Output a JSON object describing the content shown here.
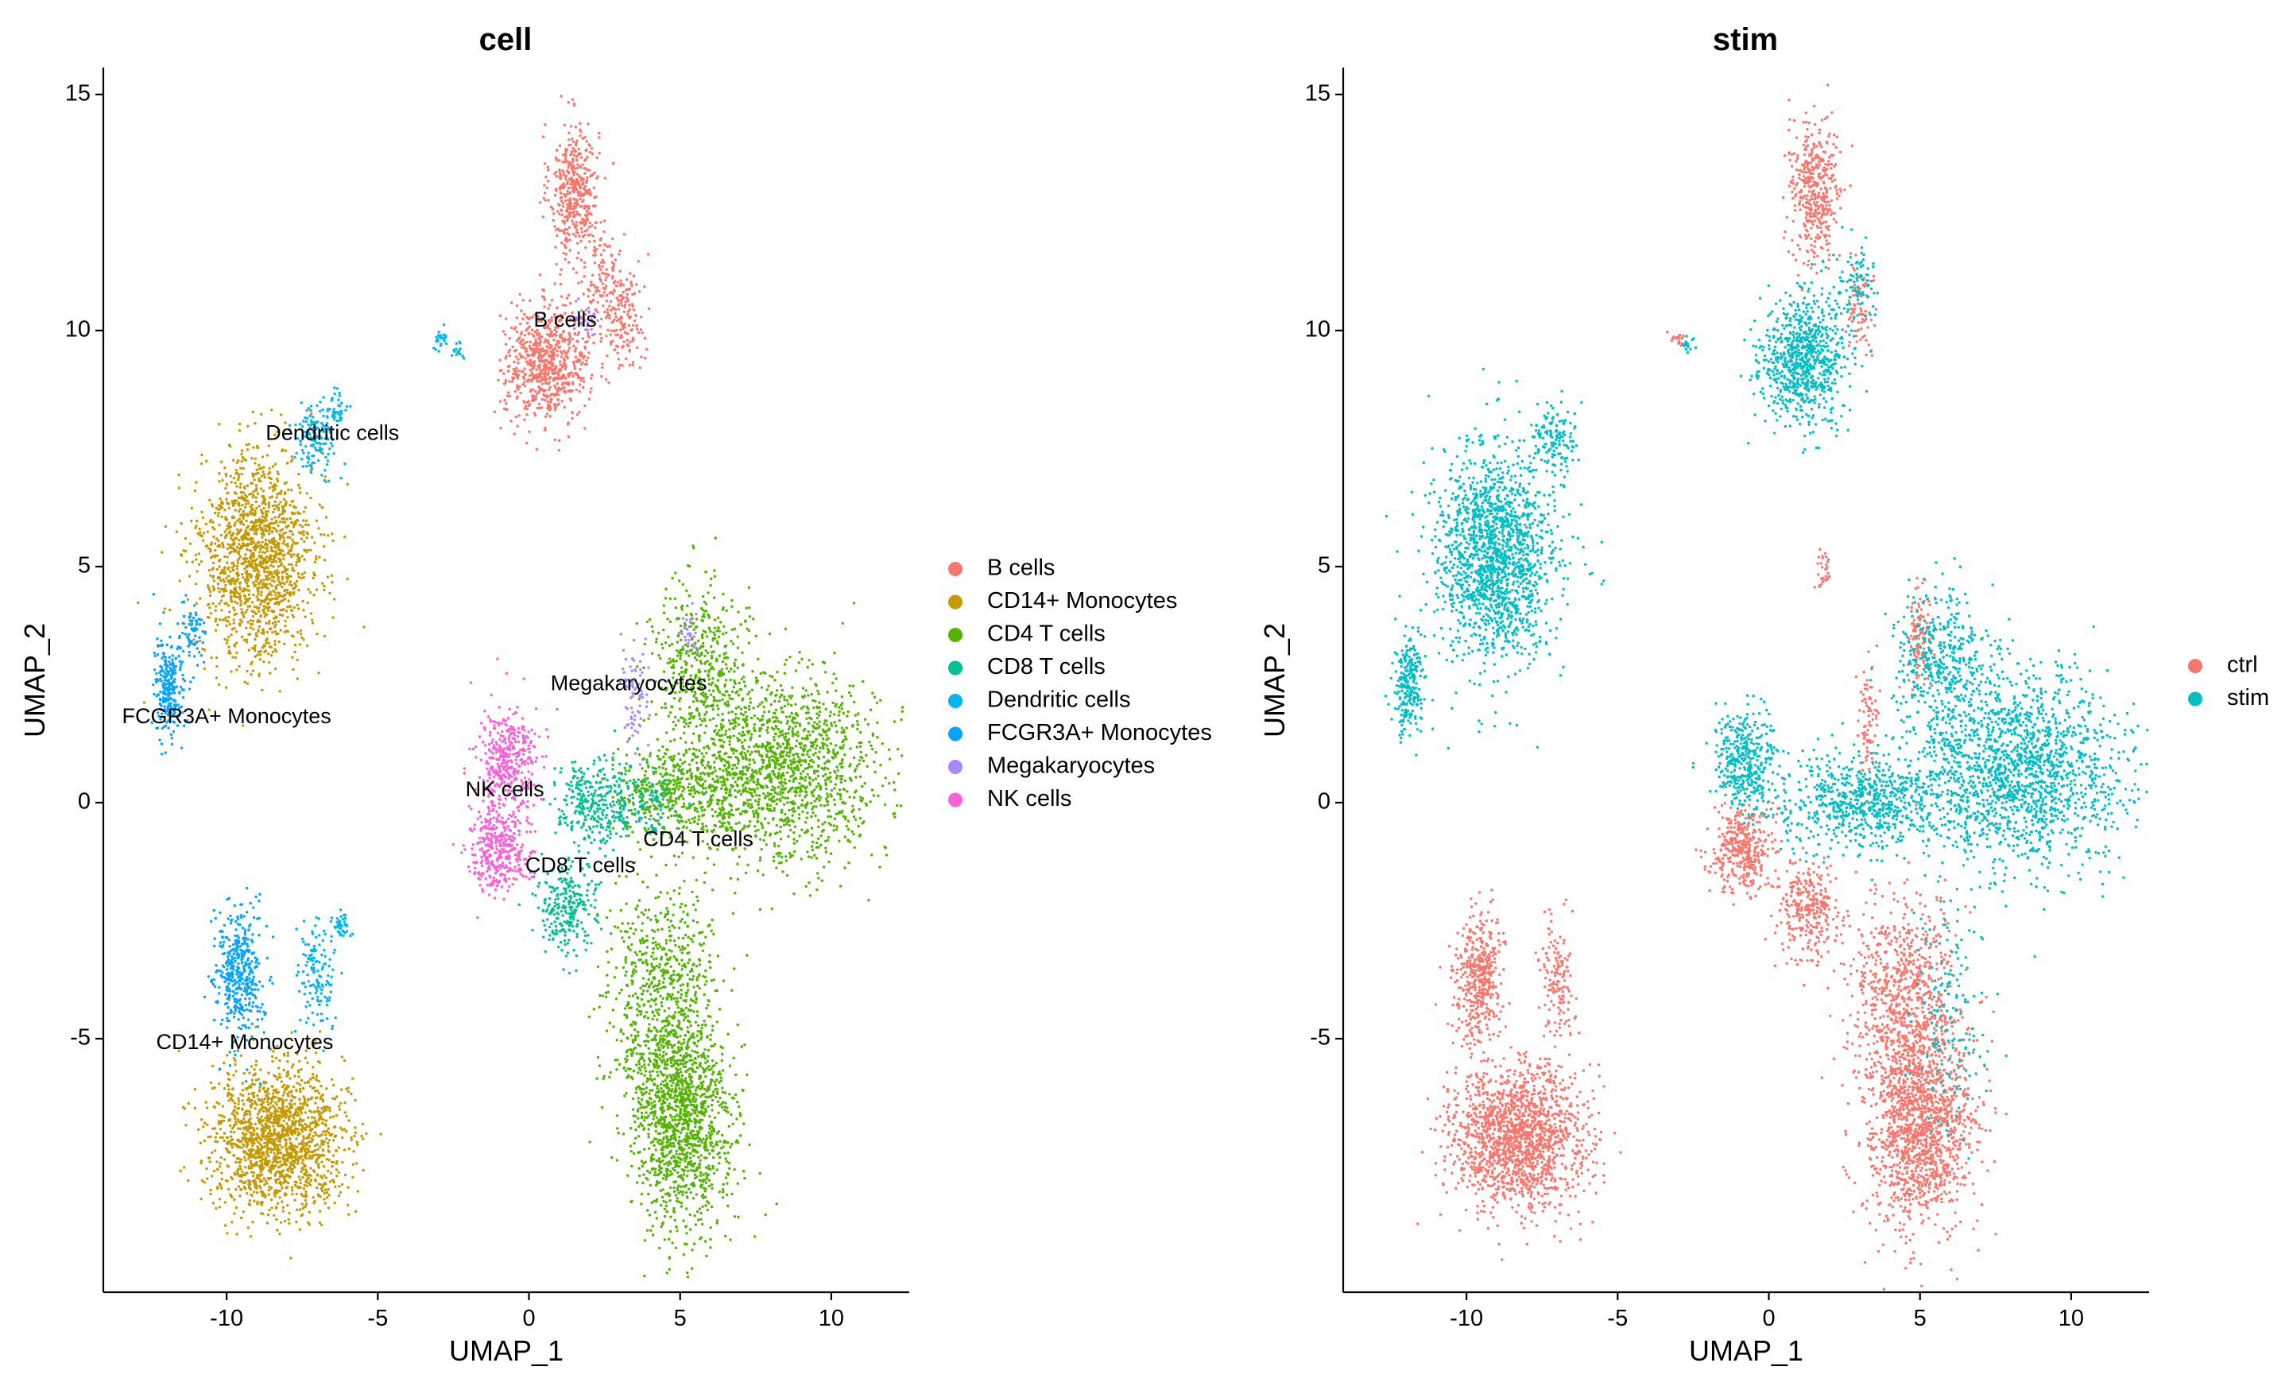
{
  "chart_data": [
    {
      "type": "scatter",
      "title": "cell",
      "xlabel": "UMAP_1",
      "ylabel": "UMAP_2",
      "xlim": [
        -13.5,
        12
      ],
      "ylim": [
        -10,
        15.2
      ],
      "xticks": [
        -10,
        -5,
        0,
        5,
        10
      ],
      "yticks": [
        -5,
        0,
        5,
        10,
        15
      ],
      "xtick_labels": [
        "-10",
        "-5",
        "0",
        "5",
        "10"
      ],
      "ytick_labels": [
        "-5",
        "0",
        "5",
        "10",
        "15"
      ],
      "grid": false,
      "legend_position": "right",
      "series": [
        {
          "name": "B cells",
          "color": "#F8766D",
          "clusters": [
            {
              "cx": 1.5,
              "cy": 13.0,
              "sx": 0.4,
              "sy": 0.7,
              "n": 420
            },
            {
              "cx": 2.5,
              "cy": 11.0,
              "sx": 0.5,
              "sy": 0.6,
              "n": 160
            },
            {
              "cx": 3.2,
              "cy": 10.2,
              "sx": 0.3,
              "sy": 0.5,
              "n": 120
            },
            {
              "cx": 0.6,
              "cy": 9.3,
              "sx": 0.7,
              "sy": 0.6,
              "n": 720
            }
          ]
        },
        {
          "name": "CD14+ Monocytes",
          "color": "#C49A00",
          "clusters": [
            {
              "cx": -9.0,
              "cy": 5.2,
              "sx": 0.95,
              "sy": 1.1,
              "n": 1500
            },
            {
              "cx": -8.3,
              "cy": -7.1,
              "sx": 1.1,
              "sy": 0.75,
              "n": 1600
            }
          ]
        },
        {
          "name": "CD4 T cells",
          "color": "#53B400",
          "clusters": [
            {
              "cx": 8.2,
              "cy": 0.7,
              "sx": 1.7,
              "sy": 1.0,
              "n": 1600
            },
            {
              "cx": 5.6,
              "cy": 3.0,
              "sx": 0.8,
              "sy": 0.8,
              "n": 400
            },
            {
              "cx": 4.4,
              "cy": -4.0,
              "sx": 0.9,
              "sy": 1.1,
              "n": 700
            },
            {
              "cx": 5.0,
              "cy": -6.8,
              "sx": 0.85,
              "sy": 1.1,
              "n": 1300
            },
            {
              "cx": 4.6,
              "cy": 0.2,
              "sx": 1.0,
              "sy": 0.5,
              "n": 400
            }
          ]
        },
        {
          "name": "CD8 T cells",
          "color": "#00C094",
          "clusters": [
            {
              "cx": 2.0,
              "cy": 0.0,
              "sx": 0.6,
              "sy": 0.5,
              "n": 260
            },
            {
              "cx": 1.2,
              "cy": -2.2,
              "sx": 0.5,
              "sy": 0.5,
              "n": 260
            },
            {
              "cx": 3.5,
              "cy": 0.0,
              "sx": 0.7,
              "sy": 0.4,
              "n": 160
            }
          ]
        },
        {
          "name": "Dendritic cells",
          "color": "#00B6EB",
          "clusters": [
            {
              "cx": -7.1,
              "cy": 7.7,
              "sx": 0.35,
              "sy": 0.35,
              "n": 140
            },
            {
              "cx": -6.4,
              "cy": 8.3,
              "sx": 0.2,
              "sy": 0.2,
              "n": 40
            },
            {
              "cx": -2.9,
              "cy": 9.8,
              "sx": 0.15,
              "sy": 0.12,
              "n": 25
            },
            {
              "cx": -2.3,
              "cy": 9.6,
              "sx": 0.1,
              "sy": 0.1,
              "n": 15
            },
            {
              "cx": -7.0,
              "cy": -3.7,
              "sx": 0.3,
              "sy": 0.6,
              "n": 140
            },
            {
              "cx": -6.2,
              "cy": -2.6,
              "sx": 0.12,
              "sy": 0.15,
              "n": 40
            }
          ]
        },
        {
          "name": "FCGR3A+ Monocytes",
          "color": "#06A4FF",
          "clusters": [
            {
              "cx": -11.9,
              "cy": 2.5,
              "sx": 0.25,
              "sy": 0.55,
              "n": 250
            },
            {
              "cx": -11.1,
              "cy": 3.6,
              "sx": 0.25,
              "sy": 0.3,
              "n": 70
            },
            {
              "cx": -9.6,
              "cy": -3.7,
              "sx": 0.4,
              "sy": 0.7,
              "n": 430
            }
          ]
        },
        {
          "name": "Megakaryocytes",
          "color": "#A58AFF",
          "clusters": [
            {
              "cx": 3.5,
              "cy": 2.2,
              "sx": 0.25,
              "sy": 0.5,
              "n": 80
            },
            {
              "cx": 5.3,
              "cy": 3.6,
              "sx": 0.15,
              "sy": 0.3,
              "n": 30
            },
            {
              "cx": 2.0,
              "cy": 10.2,
              "sx": 0.3,
              "sy": 0.3,
              "n": 30
            }
          ]
        },
        {
          "name": "NK cells",
          "color": "#FB61D7",
          "clusters": [
            {
              "cx": -0.7,
              "cy": 0.9,
              "sx": 0.5,
              "sy": 0.55,
              "n": 380
            },
            {
              "cx": -1.0,
              "cy": -1.0,
              "sx": 0.5,
              "sy": 0.45,
              "n": 380
            }
          ]
        }
      ],
      "annotations": [
        {
          "text": "B cells",
          "x": 1.2,
          "y": 10.2
        },
        {
          "text": "Dendritic cells",
          "x": -6.5,
          "y": 7.8
        },
        {
          "text": "Megakaryocytes",
          "x": 3.3,
          "y": 2.5
        },
        {
          "text": "FCGR3A+ Monocytes",
          "x": -10.0,
          "y": 1.8
        },
        {
          "text": "NK cells",
          "x": -0.8,
          "y": 0.25
        },
        {
          "text": "CD4 T cells",
          "x": 5.6,
          "y": -0.8
        },
        {
          "text": "CD8 T cells",
          "x": 1.7,
          "y": -1.35
        },
        {
          "text": "CD14+ Monocytes",
          "x": -9.4,
          "y": -5.1
        }
      ]
    },
    {
      "type": "scatter",
      "title": "stim",
      "xlabel": "UMAP_1",
      "ylabel": "UMAP_2",
      "xlim": [
        -13.5,
        12
      ],
      "ylim": [
        -10,
        15.2
      ],
      "xticks": [
        -10,
        -5,
        0,
        5,
        10
      ],
      "yticks": [
        -5,
        0,
        5,
        10,
        15
      ],
      "xtick_labels": [
        "-10",
        "-5",
        "0",
        "5",
        "10"
      ],
      "ytick_labels": [
        "-5",
        "0",
        "5",
        "10",
        "15"
      ],
      "grid": false,
      "legend_position": "right",
      "series": [
        {
          "name": "ctrl",
          "color": "#F8766D",
          "clusters": [
            {
              "cx": 1.5,
              "cy": 13.0,
              "sx": 0.4,
              "sy": 0.7,
              "n": 420
            },
            {
              "cx": 3.0,
              "cy": 10.5,
              "sx": 0.25,
              "sy": 0.5,
              "n": 80
            },
            {
              "cx": -3.0,
              "cy": 9.85,
              "sx": 0.12,
              "sy": 0.1,
              "n": 20
            },
            {
              "cx": 1.8,
              "cy": 4.9,
              "sx": 0.15,
              "sy": 0.2,
              "n": 30
            },
            {
              "cx": 5.0,
              "cy": 3.5,
              "sx": 0.2,
              "sy": 0.5,
              "n": 120
            },
            {
              "cx": 3.3,
              "cy": 1.6,
              "sx": 0.15,
              "sy": 0.6,
              "n": 80
            },
            {
              "cx": -0.9,
              "cy": -1.0,
              "sx": 0.5,
              "sy": 0.45,
              "n": 380
            },
            {
              "cx": 1.3,
              "cy": -2.3,
              "sx": 0.5,
              "sy": 0.5,
              "n": 300
            },
            {
              "cx": 4.4,
              "cy": -4.2,
              "sx": 0.9,
              "sy": 1.1,
              "n": 800
            },
            {
              "cx": 5.0,
              "cy": -6.9,
              "sx": 0.85,
              "sy": 1.1,
              "n": 1400
            },
            {
              "cx": -8.3,
              "cy": -7.1,
              "sx": 1.1,
              "sy": 0.75,
              "n": 1600
            },
            {
              "cx": -9.6,
              "cy": -3.7,
              "sx": 0.4,
              "sy": 0.7,
              "n": 430
            },
            {
              "cx": -7.0,
              "cy": -3.7,
              "sx": 0.3,
              "sy": 0.6,
              "n": 140
            }
          ]
        },
        {
          "name": "stim",
          "color": "#00BFC4",
          "clusters": [
            {
              "cx": 1.2,
              "cy": 9.4,
              "sx": 0.7,
              "sy": 0.7,
              "n": 800
            },
            {
              "cx": 3.0,
              "cy": 11.0,
              "sx": 0.35,
              "sy": 0.4,
              "n": 80
            },
            {
              "cx": -2.7,
              "cy": 9.7,
              "sx": 0.12,
              "sy": 0.1,
              "n": 15
            },
            {
              "cx": -9.0,
              "cy": 5.2,
              "sx": 0.95,
              "sy": 1.1,
              "n": 1600
            },
            {
              "cx": -7.1,
              "cy": 7.7,
              "sx": 0.35,
              "sy": 0.35,
              "n": 140
            },
            {
              "cx": -11.9,
              "cy": 2.5,
              "sx": 0.25,
              "sy": 0.55,
              "n": 250
            },
            {
              "cx": 8.2,
              "cy": 0.7,
              "sx": 1.7,
              "sy": 1.0,
              "n": 1700
            },
            {
              "cx": 5.8,
              "cy": 3.0,
              "sx": 0.8,
              "sy": 0.8,
              "n": 400
            },
            {
              "cx": 3.0,
              "cy": 0.0,
              "sx": 1.3,
              "sy": 0.5,
              "n": 700
            },
            {
              "cx": -0.8,
              "cy": 0.9,
              "sx": 0.5,
              "sy": 0.55,
              "n": 380
            },
            {
              "cx": 6.0,
              "cy": -4.5,
              "sx": 0.6,
              "sy": 1.2,
              "n": 150
            }
          ]
        }
      ],
      "annotations": []
    }
  ]
}
